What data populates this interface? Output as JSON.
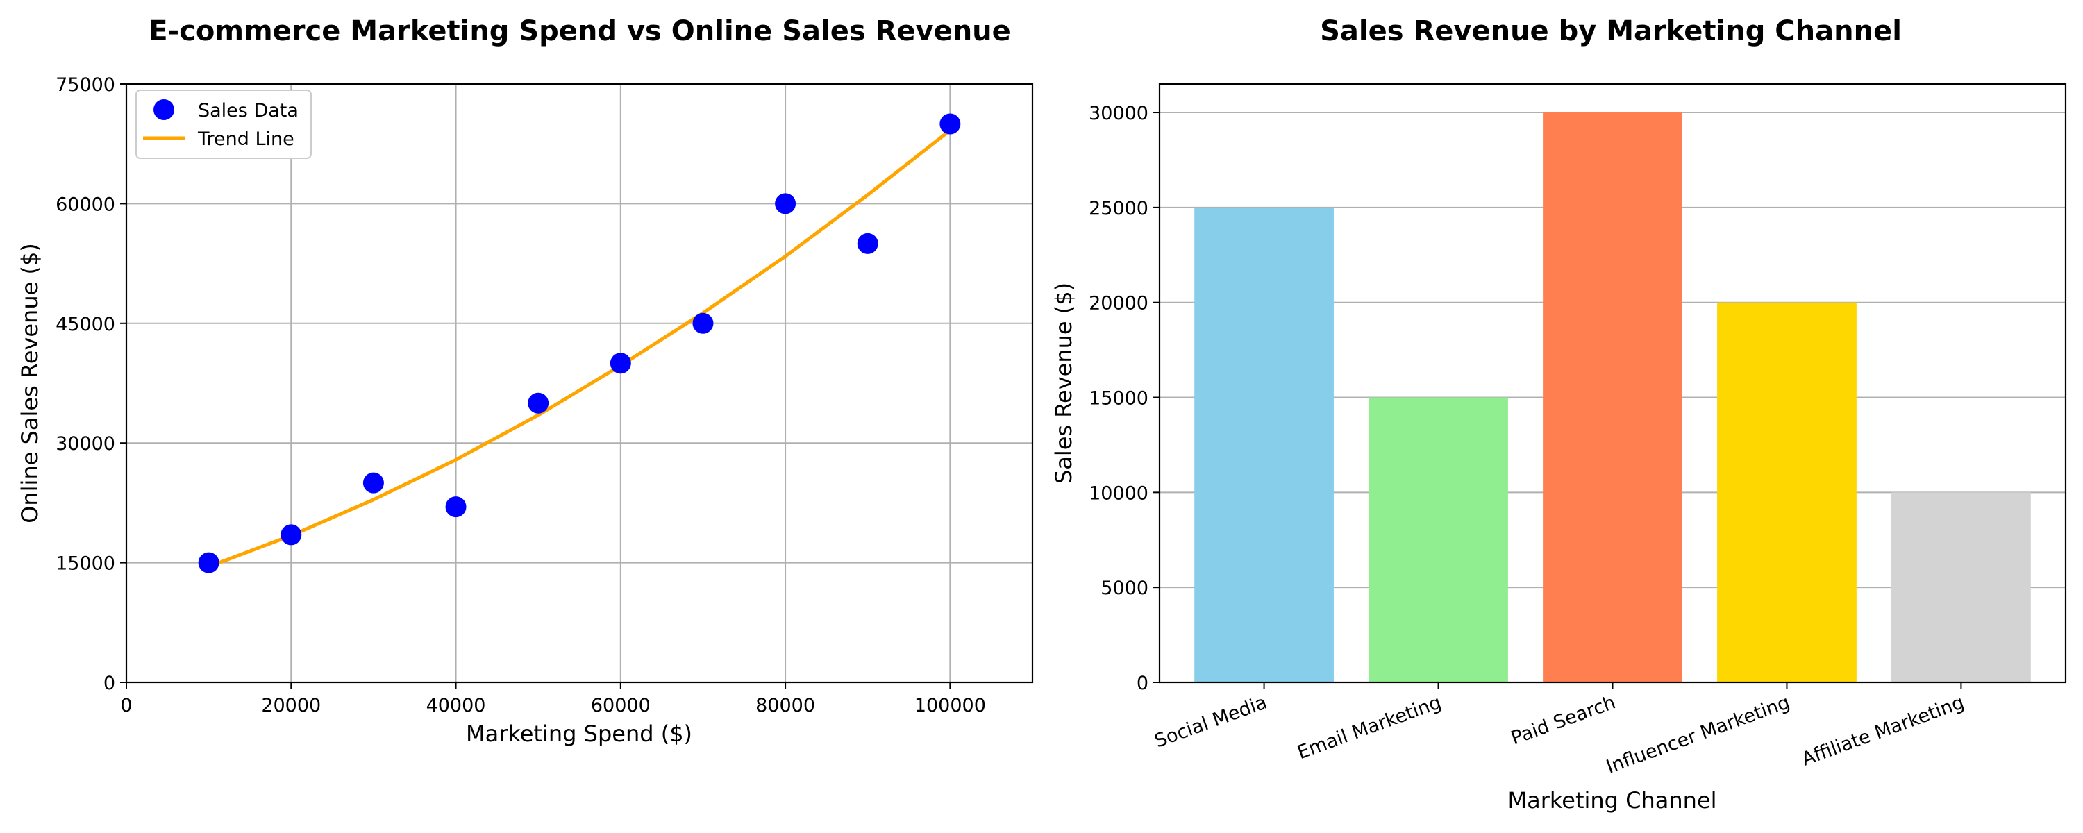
{
  "chart_data": [
    {
      "type": "scatter",
      "title": "E-commerce Marketing Spend vs Online Sales Revenue",
      "xlabel": "Marketing Spend ($)",
      "ylabel": "Online Sales Revenue ($)",
      "xlim": [
        0,
        110000
      ],
      "ylim": [
        0,
        75000
      ],
      "xticks": [
        0,
        20000,
        40000,
        60000,
        80000,
        100000
      ],
      "yticks": [
        0,
        15000,
        30000,
        45000,
        60000,
        75000
      ],
      "grid": true,
      "legend": {
        "position": "top-left",
        "entries": [
          "Sales Data",
          "Trend Line"
        ]
      },
      "series": [
        {
          "name": "Sales Data",
          "kind": "scatter",
          "color": "#0000ff",
          "x": [
            10000,
            20000,
            30000,
            40000,
            50000,
            60000,
            70000,
            80000,
            90000,
            100000
          ],
          "y": [
            15000,
            18500,
            25000,
            22000,
            35000,
            40000,
            45000,
            60000,
            55000,
            70000
          ]
        },
        {
          "name": "Trend Line",
          "kind": "line",
          "color": "#ffa500",
          "x": [
            10000,
            20000,
            30000,
            40000,
            50000,
            60000,
            70000,
            80000,
            90000,
            100000
          ],
          "y": [
            14500,
            18400,
            22900,
            27900,
            33500,
            39700,
            46300,
            53400,
            61100,
            69200
          ]
        }
      ]
    },
    {
      "type": "bar",
      "title": "Sales Revenue by Marketing Channel",
      "xlabel": "Marketing Channel",
      "ylabel": "Sales Revenue ($)",
      "ylim": [
        0,
        31500
      ],
      "yticks": [
        0,
        5000,
        10000,
        15000,
        20000,
        25000,
        30000
      ],
      "grid": true,
      "categories": [
        "Social Media",
        "Email Marketing",
        "Paid Search",
        "Influencer Marketing",
        "Affiliate Marketing"
      ],
      "values": [
        25000,
        15000,
        30000,
        20000,
        10000
      ],
      "colors": [
        "#87ceeb",
        "#90ee90",
        "#ff7f50",
        "#ffd700",
        "#d3d3d3"
      ]
    }
  ]
}
